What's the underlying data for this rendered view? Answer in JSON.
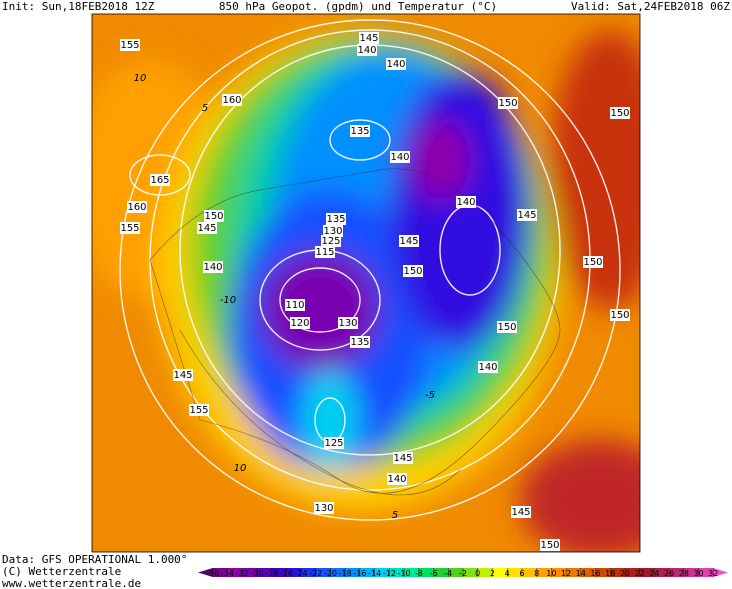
{
  "header": {
    "init": "Init: Sun,18FEB2018 12Z",
    "title": "850 hPa Geopot. (gpdm) und Temperatur (°C)",
    "valid": "Valid: Sat,24FEB2018 06Z"
  },
  "footer": {
    "data": "Data: GFS OPERATIONAL 1.000°",
    "copyright": "(C) Wetterzentrale",
    "url": "www.wetterzentrale.de"
  },
  "contour_labels": [
    "155",
    "160",
    "165",
    "160",
    "155",
    "150",
    "145",
    "140",
    "145",
    "155",
    "145",
    "140",
    "140",
    "135",
    "140",
    "150",
    "150",
    "140",
    "145",
    "135",
    "130",
    "125",
    "145",
    "115",
    "150",
    "150",
    "110",
    "120",
    "130",
    "135",
    "150",
    "150",
    "140",
    "125",
    "145",
    "140",
    "130",
    "145",
    "150"
  ],
  "temperature_labels": [
    "10",
    "5",
    "10",
    "5",
    "-10",
    "-5"
  ],
  "colorbar": {
    "ticks": [
      -36,
      -34,
      -32,
      -30,
      -28,
      -26,
      -24,
      -22,
      -20,
      -18,
      -16,
      -14,
      -12,
      -10,
      -8,
      -6,
      -4,
      -2,
      0,
      2,
      4,
      6,
      8,
      10,
      12,
      14,
      16,
      18,
      20,
      22,
      24,
      26,
      28,
      30,
      32
    ],
    "colors": [
      "#5a0070",
      "#7a0090",
      "#8f00a8",
      "#7800b0",
      "#5c00c0",
      "#4000d0",
      "#3010e0",
      "#2030f0",
      "#1850ff",
      "#1070ff",
      "#0090ff",
      "#00b0ff",
      "#00d0f0",
      "#00e0c0",
      "#00e890",
      "#00e060",
      "#20d030",
      "#50d020",
      "#80e010",
      "#c0f000",
      "#ffff00",
      "#ffe000",
      "#ffc000",
      "#ffa000",
      "#ff8c00",
      "#f07800",
      "#e06000",
      "#d04800",
      "#c03000",
      "#b02020",
      "#a01830",
      "#b02050",
      "#c02870",
      "#d03090",
      "#e040b0",
      "#f050d0"
    ]
  }
}
